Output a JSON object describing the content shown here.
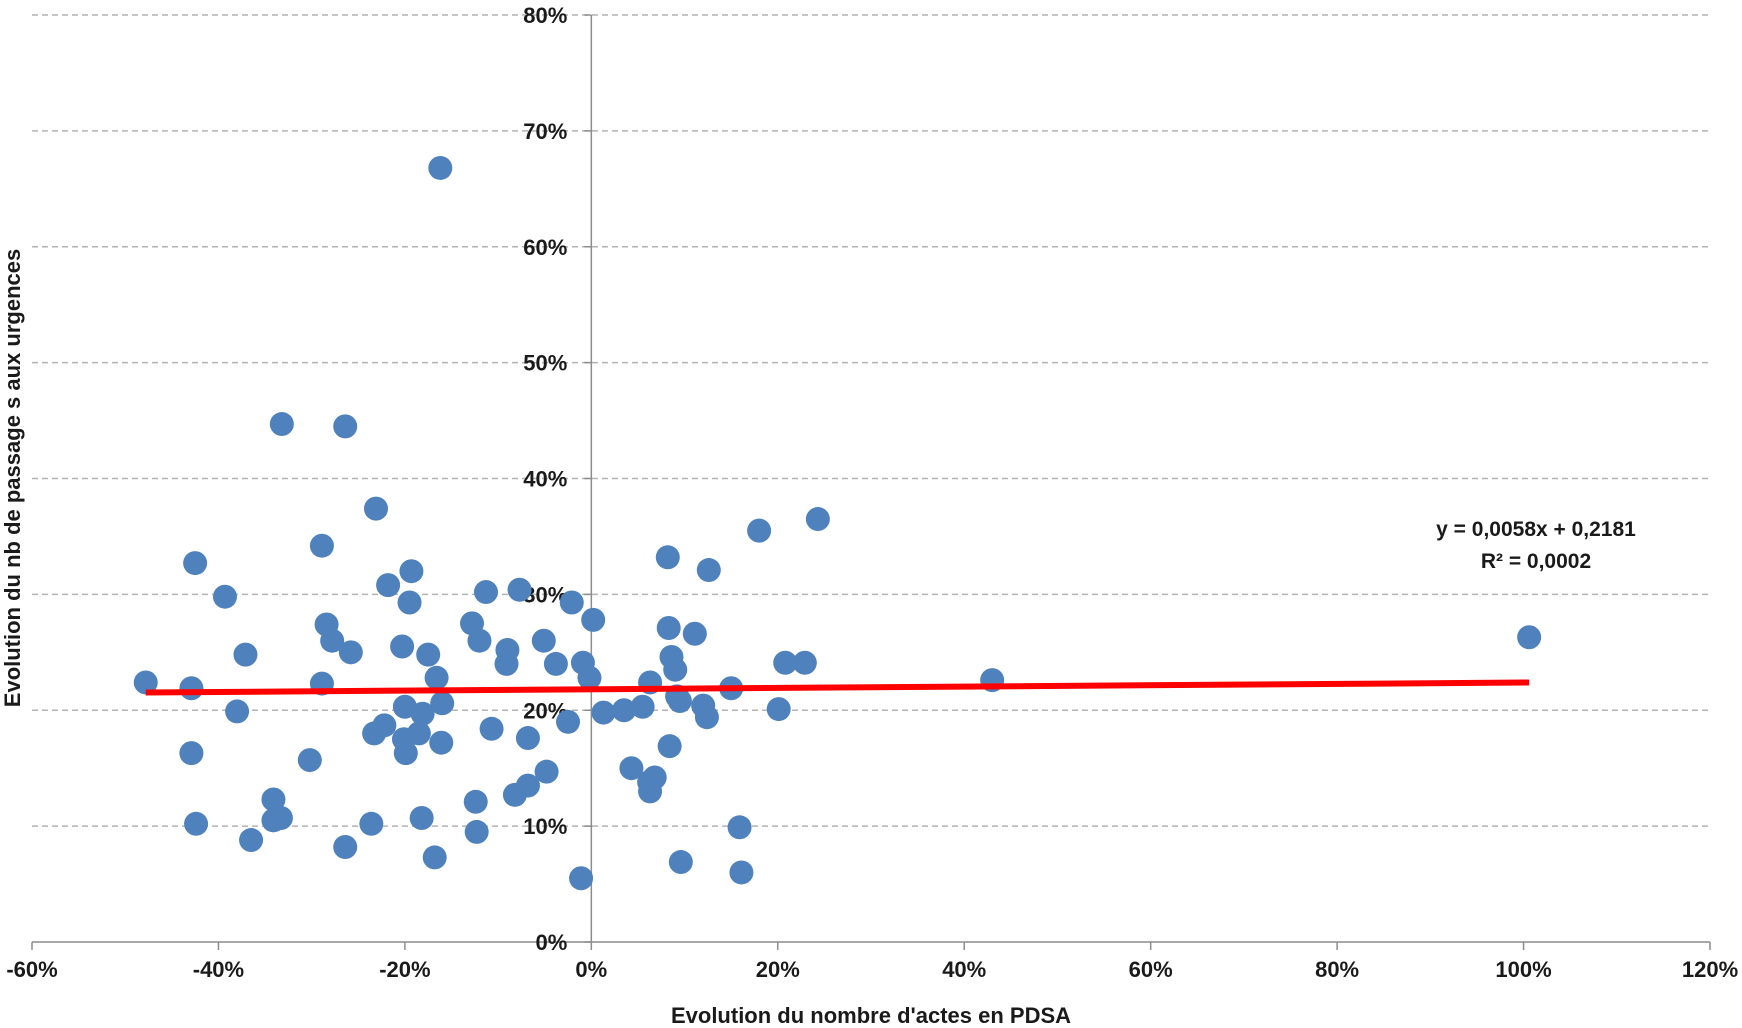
{
  "chart_data": {
    "type": "scatter",
    "title": "",
    "xlabel": "Evolution du nombre d'actes en PDSA",
    "ylabel": "Evolution du nb de passage s aux urgences",
    "xlim": [
      -60,
      120
    ],
    "ylim": [
      0,
      80
    ],
    "x_ticks": [
      "-60%",
      "-40%",
      "-20%",
      "0%",
      "20%",
      "40%",
      "60%",
      "80%",
      "100%",
      "120%"
    ],
    "y_ticks": [
      "0%",
      "10%",
      "20%",
      "30%",
      "40%",
      "50%",
      "60%",
      "70%",
      "80%"
    ],
    "grid": "horizontal dashed",
    "legend": "none",
    "marker_color": "#4f81bd",
    "trendline_color": "#ff0000",
    "points": [
      {
        "x": -47.8,
        "y": 22.4
      },
      {
        "x": -42.9,
        "y": 21.9
      },
      {
        "x": -42.5,
        "y": 32.7
      },
      {
        "x": -42.9,
        "y": 16.3
      },
      {
        "x": -42.4,
        "y": 10.2
      },
      {
        "x": -39.3,
        "y": 29.8
      },
      {
        "x": -38.0,
        "y": 19.9
      },
      {
        "x": -37.1,
        "y": 24.8
      },
      {
        "x": -36.5,
        "y": 8.8
      },
      {
        "x": -34.1,
        "y": 12.3
      },
      {
        "x": -34.1,
        "y": 10.5
      },
      {
        "x": -33.3,
        "y": 10.7
      },
      {
        "x": -33.2,
        "y": 44.7
      },
      {
        "x": -30.2,
        "y": 15.7
      },
      {
        "x": -28.9,
        "y": 34.2
      },
      {
        "x": -28.9,
        "y": 22.3
      },
      {
        "x": -28.4,
        "y": 27.4
      },
      {
        "x": -27.8,
        "y": 26.0
      },
      {
        "x": -26.4,
        "y": 8.2
      },
      {
        "x": -26.4,
        "y": 44.5
      },
      {
        "x": -25.8,
        "y": 25.0
      },
      {
        "x": -23.6,
        "y": 10.2
      },
      {
        "x": -23.3,
        "y": 18.0
      },
      {
        "x": -23.1,
        "y": 37.4
      },
      {
        "x": -22.2,
        "y": 18.7
      },
      {
        "x": -21.8,
        "y": 30.8
      },
      {
        "x": -20.3,
        "y": 25.5
      },
      {
        "x": -20.1,
        "y": 17.5
      },
      {
        "x": -20.0,
        "y": 20.3
      },
      {
        "x": -19.9,
        "y": 16.3
      },
      {
        "x": -19.5,
        "y": 29.3
      },
      {
        "x": -19.3,
        "y": 32.0
      },
      {
        "x": -18.5,
        "y": 18.0
      },
      {
        "x": -18.2,
        "y": 10.7
      },
      {
        "x": -18.1,
        "y": 19.7
      },
      {
        "x": -17.5,
        "y": 24.8
      },
      {
        "x": -16.8,
        "y": 7.3
      },
      {
        "x": -16.6,
        "y": 22.8
      },
      {
        "x": -16.1,
        "y": 17.2
      },
      {
        "x": -16.0,
        "y": 20.6
      },
      {
        "x": -16.2,
        "y": 66.8
      },
      {
        "x": -12.8,
        "y": 27.5
      },
      {
        "x": -12.4,
        "y": 12.1
      },
      {
        "x": -12.3,
        "y": 9.5
      },
      {
        "x": -12.0,
        "y": 26.0
      },
      {
        "x": -11.3,
        "y": 30.2
      },
      {
        "x": -10.7,
        "y": 18.4
      },
      {
        "x": -9.1,
        "y": 24.0
      },
      {
        "x": -9.0,
        "y": 25.2
      },
      {
        "x": -8.2,
        "y": 12.7
      },
      {
        "x": -7.7,
        "y": 30.4
      },
      {
        "x": -6.8,
        "y": 13.5
      },
      {
        "x": -6.8,
        "y": 17.6
      },
      {
        "x": -5.1,
        "y": 26.0
      },
      {
        "x": -4.8,
        "y": 14.7
      },
      {
        "x": -3.8,
        "y": 24.0
      },
      {
        "x": -2.5,
        "y": 19.0
      },
      {
        "x": -2.1,
        "y": 29.3
      },
      {
        "x": -1.1,
        "y": 5.5
      },
      {
        "x": -0.9,
        "y": 24.1
      },
      {
        "x": -0.2,
        "y": 22.8
      },
      {
        "x": 0.2,
        "y": 27.8
      },
      {
        "x": 1.3,
        "y": 19.8
      },
      {
        "x": 3.5,
        "y": 20.0
      },
      {
        "x": 4.3,
        "y": 15.0
      },
      {
        "x": 5.5,
        "y": 20.3
      },
      {
        "x": 6.3,
        "y": 22.4
      },
      {
        "x": 6.2,
        "y": 13.8
      },
      {
        "x": 6.3,
        "y": 13.0
      },
      {
        "x": 6.8,
        "y": 14.2
      },
      {
        "x": 8.2,
        "y": 33.2
      },
      {
        "x": 8.3,
        "y": 27.1
      },
      {
        "x": 8.4,
        "y": 16.9
      },
      {
        "x": 8.6,
        "y": 24.6
      },
      {
        "x": 9.0,
        "y": 23.5
      },
      {
        "x": 9.2,
        "y": 21.2
      },
      {
        "x": 9.5,
        "y": 20.8
      },
      {
        "x": 9.6,
        "y": 6.9
      },
      {
        "x": 11.1,
        "y": 26.6
      },
      {
        "x": 12.0,
        "y": 20.4
      },
      {
        "x": 12.4,
        "y": 19.4
      },
      {
        "x": 12.6,
        "y": 32.1
      },
      {
        "x": 15.0,
        "y": 21.9
      },
      {
        "x": 15.9,
        "y": 9.9
      },
      {
        "x": 16.1,
        "y": 6.0
      },
      {
        "x": 18.0,
        "y": 35.5
      },
      {
        "x": 20.1,
        "y": 20.1
      },
      {
        "x": 20.8,
        "y": 24.1
      },
      {
        "x": 22.9,
        "y": 24.1
      },
      {
        "x": 24.3,
        "y": 36.5
      },
      {
        "x": 43.0,
        "y": 22.6
      },
      {
        "x": 100.6,
        "y": 26.3
      }
    ],
    "trendline": {
      "type": "linear",
      "slope": 0.0058,
      "intercept": 21.81,
      "x_range": [
        -47.8,
        100.6
      ],
      "equation": "y = 0,0058x + 0,2181",
      "r_squared": "R² = 0,0002"
    }
  }
}
